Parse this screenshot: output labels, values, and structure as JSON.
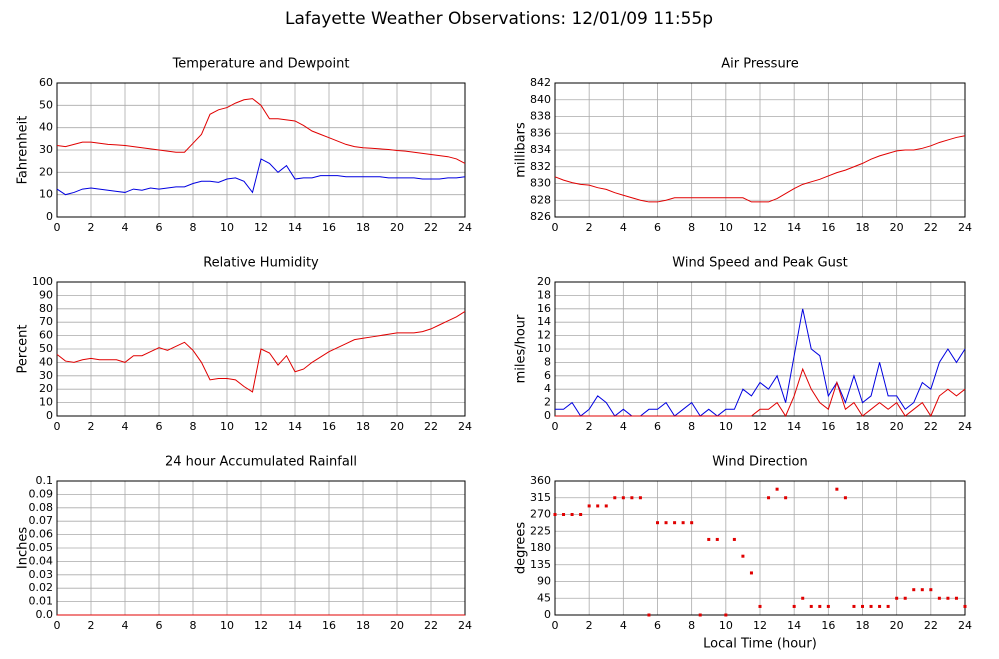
{
  "title": "Lafayette Weather Observations: 12/01/09 11:55p",
  "chart_data": [
    {
      "type": "line",
      "title": "Temperature and Dewpoint",
      "ylabel": "Fahrenheit",
      "grid": true,
      "xlim": [
        0,
        24
      ],
      "xticks": [
        0,
        2,
        4,
        6,
        8,
        10,
        12,
        14,
        16,
        18,
        20,
        22,
        24
      ],
      "ylim": [
        0,
        60
      ],
      "yticks": [
        0,
        10,
        20,
        30,
        40,
        50,
        60
      ],
      "x": [
        0,
        0.5,
        1,
        1.5,
        2,
        2.5,
        3,
        3.5,
        4,
        4.5,
        5,
        5.5,
        6,
        6.5,
        7,
        7.5,
        8,
        8.5,
        9,
        9.5,
        10,
        10.5,
        11,
        11.5,
        12,
        12.5,
        13,
        13.5,
        14,
        14.5,
        15,
        15.5,
        16,
        16.5,
        17,
        17.5,
        18,
        18.5,
        19,
        19.5,
        20,
        20.5,
        21,
        21.5,
        22,
        22.5,
        23,
        23.5,
        24
      ],
      "series": [
        {
          "color": "#e00000",
          "values": [
            32,
            31.5,
            32.5,
            33.5,
            33.5,
            33,
            32.5,
            32.3,
            32,
            31.5,
            31,
            30.5,
            30,
            29.5,
            29,
            29,
            33,
            37,
            46,
            48,
            49,
            51,
            52.5,
            53,
            50,
            44,
            44,
            43.5,
            43,
            41,
            38.5,
            37,
            35.5,
            34,
            32.5,
            31.5,
            31,
            30.8,
            30.5,
            30.2,
            29.8,
            29.5,
            29,
            28.5,
            28,
            27.5,
            27,
            26,
            24
          ]
        },
        {
          "color": "#0000e0",
          "values": [
            12.5,
            10,
            11,
            12.5,
            13,
            12.5,
            12,
            11.5,
            11,
            12.5,
            12,
            13,
            12.5,
            13,
            13.5,
            13.5,
            15,
            16,
            16,
            15.5,
            17,
            17.5,
            16,
            11,
            26,
            24,
            20,
            23,
            17,
            17.5,
            17.5,
            18.5,
            18.5,
            18.5,
            18,
            18,
            18,
            18,
            18,
            17.5,
            17.5,
            17.5,
            17.5,
            17,
            17,
            17,
            17.5,
            17.5,
            18
          ]
        }
      ]
    },
    {
      "type": "line",
      "title": "Air Pressure",
      "ylabel": "millibars",
      "grid": true,
      "xlim": [
        0,
        24
      ],
      "xticks": [
        0,
        2,
        4,
        6,
        8,
        10,
        12,
        14,
        16,
        18,
        20,
        22,
        24
      ],
      "ylim": [
        826,
        842
      ],
      "yticks": [
        826,
        828,
        830,
        832,
        834,
        836,
        838,
        840,
        842
      ],
      "x": [
        0,
        0.5,
        1,
        1.5,
        2,
        2.5,
        3,
        3.5,
        4,
        4.5,
        5,
        5.5,
        6,
        6.5,
        7,
        7.5,
        8,
        8.5,
        9,
        9.5,
        10,
        10.5,
        11,
        11.5,
        12,
        12.5,
        13,
        13.5,
        14,
        14.5,
        15,
        15.5,
        16,
        16.5,
        17,
        17.5,
        18,
        18.5,
        19,
        19.5,
        20,
        20.5,
        21,
        21.5,
        22,
        22.5,
        23,
        23.5,
        24
      ],
      "series": [
        {
          "color": "#e00000",
          "values": [
            830.8,
            830.4,
            830.1,
            829.9,
            829.8,
            829.5,
            829.3,
            828.9,
            828.6,
            828.3,
            828.0,
            827.8,
            827.8,
            828.0,
            828.3,
            828.3,
            828.3,
            828.3,
            828.3,
            828.3,
            828.3,
            828.3,
            828.3,
            827.8,
            827.8,
            827.8,
            828.2,
            828.8,
            829.4,
            829.9,
            830.2,
            830.5,
            830.9,
            831.3,
            831.6,
            832,
            832.4,
            832.9,
            833.3,
            833.6,
            833.9,
            834,
            834,
            834.2,
            834.5,
            834.9,
            835.2,
            835.5,
            835.7
          ]
        }
      ]
    },
    {
      "type": "line",
      "title": "Relative Humidity",
      "ylabel": "Percent",
      "grid": true,
      "xlim": [
        0,
        24
      ],
      "xticks": [
        0,
        2,
        4,
        6,
        8,
        10,
        12,
        14,
        16,
        18,
        20,
        22,
        24
      ],
      "ylim": [
        0,
        100
      ],
      "yticks": [
        0,
        10,
        20,
        30,
        40,
        50,
        60,
        70,
        80,
        90,
        100
      ],
      "x": [
        0,
        0.5,
        1,
        1.5,
        2,
        2.5,
        3,
        3.5,
        4,
        4.5,
        5,
        5.5,
        6,
        6.5,
        7,
        7.5,
        8,
        8.5,
        9,
        9.5,
        10,
        10.5,
        11,
        11.5,
        12,
        12.5,
        13,
        13.5,
        14,
        14.5,
        15,
        15.5,
        16,
        16.5,
        17,
        17.5,
        18,
        18.5,
        19,
        19.5,
        20,
        20.5,
        21,
        21.5,
        22,
        22.5,
        23,
        23.5,
        24
      ],
      "series": [
        {
          "color": "#e00000",
          "values": [
            46,
            41,
            40,
            42,
            43,
            42,
            42,
            42,
            40,
            45,
            45,
            48,
            51,
            49,
            52,
            55,
            49,
            40,
            27,
            28,
            28,
            27,
            22,
            18,
            50,
            47,
            38,
            45,
            33,
            35,
            40,
            44,
            48,
            51,
            54,
            57,
            58,
            59,
            60,
            61,
            62,
            62,
            62,
            63,
            65,
            68,
            71,
            74,
            78
          ]
        }
      ]
    },
    {
      "type": "line",
      "title": "Wind Speed and Peak Gust",
      "ylabel": "miles/hour",
      "grid": true,
      "xlim": [
        0,
        24
      ],
      "xticks": [
        0,
        2,
        4,
        6,
        8,
        10,
        12,
        14,
        16,
        18,
        20,
        22,
        24
      ],
      "ylim": [
        0,
        20
      ],
      "yticks": [
        0,
        2,
        4,
        6,
        8,
        10,
        12,
        14,
        16,
        18,
        20
      ],
      "x": [
        0,
        0.5,
        1,
        1.5,
        2,
        2.5,
        3,
        3.5,
        4,
        4.5,
        5,
        5.5,
        6,
        6.5,
        7,
        7.5,
        8,
        8.5,
        9,
        9.5,
        10,
        10.5,
        11,
        11.5,
        12,
        12.5,
        13,
        13.5,
        14,
        14.5,
        15,
        15.5,
        16,
        16.5,
        17,
        17.5,
        18,
        18.5,
        19,
        19.5,
        20,
        20.5,
        21,
        21.5,
        22,
        22.5,
        23,
        23.5,
        24
      ],
      "series": [
        {
          "color": "#0000e0",
          "values": [
            1,
            1,
            2,
            0,
            1,
            3,
            2,
            0,
            1,
            0,
            0,
            1,
            1,
            2,
            0,
            1,
            2,
            0,
            1,
            0,
            1,
            1,
            4,
            3,
            5,
            4,
            6,
            2,
            9,
            16,
            10,
            9,
            3,
            5,
            2,
            6,
            2,
            3,
            8,
            3,
            3,
            1,
            2,
            5,
            4,
            8,
            10,
            8,
            10
          ]
        },
        {
          "color": "#e00000",
          "values": [
            0,
            0,
            0,
            0,
            0,
            0,
            0,
            0,
            0,
            0,
            0,
            0,
            0,
            0,
            0,
            0,
            0,
            0,
            0,
            0,
            0,
            0,
            0,
            0,
            1,
            1,
            2,
            0,
            3,
            7,
            4,
            2,
            1,
            5,
            1,
            2,
            0,
            1,
            2,
            1,
            2,
            0,
            1,
            2,
            0,
            3,
            4,
            3,
            4
          ]
        }
      ]
    },
    {
      "type": "line",
      "title": "24 hour Accumulated Rainfall",
      "ylabel": "Inches",
      "grid": true,
      "xlim": [
        0,
        24
      ],
      "xticks": [
        0,
        2,
        4,
        6,
        8,
        10,
        12,
        14,
        16,
        18,
        20,
        22,
        24
      ],
      "ylim": [
        0,
        0.1
      ],
      "yticks": [
        {
          "value": 0,
          "label": "0.0"
        },
        0.01,
        0.02,
        0.03,
        0.04,
        0.05,
        0.06,
        0.07,
        0.08,
        0.09,
        0.1
      ],
      "x": [
        0,
        24
      ],
      "series": [
        {
          "color": "#e00000",
          "values": [
            0,
            0
          ]
        }
      ]
    },
    {
      "type": "scatter",
      "title": "Wind Direction",
      "ylabel": "degrees",
      "xlabel": "Local Time (hour)",
      "grid": true,
      "xlim": [
        0,
        24
      ],
      "xticks": [
        0,
        2,
        4,
        6,
        8,
        10,
        12,
        14,
        16,
        18,
        20,
        22,
        24
      ],
      "ylim": [
        0,
        360
      ],
      "yticks": [
        0,
        45,
        90,
        135,
        180,
        225,
        270,
        315,
        360
      ],
      "x": [
        0,
        0.5,
        1,
        1.5,
        2,
        2.5,
        3,
        3.5,
        4,
        4.5,
        5,
        5.5,
        6,
        6.5,
        7,
        7.5,
        8,
        8.5,
        9,
        9.5,
        10,
        10.5,
        11,
        11.5,
        12,
        12.5,
        13,
        13.5,
        14,
        14.5,
        15,
        15.5,
        16,
        16.5,
        17,
        17.5,
        18,
        18.5,
        19,
        19.5,
        20,
        20.5,
        21,
        21.5,
        22,
        22.5,
        23,
        23.5,
        24
      ],
      "series": [
        {
          "color": "#e00000",
          "values": [
            270,
            270,
            270,
            270,
            293,
            293,
            293,
            315,
            315,
            315,
            315,
            0,
            248,
            248,
            248,
            248,
            248,
            0,
            203,
            203,
            0,
            203,
            158,
            113,
            23,
            315,
            338,
            315,
            23,
            45,
            23,
            23,
            23,
            338,
            315,
            23,
            23,
            23,
            23,
            23,
            45,
            45,
            68,
            68,
            68,
            45,
            45,
            45,
            23
          ]
        }
      ]
    }
  ]
}
